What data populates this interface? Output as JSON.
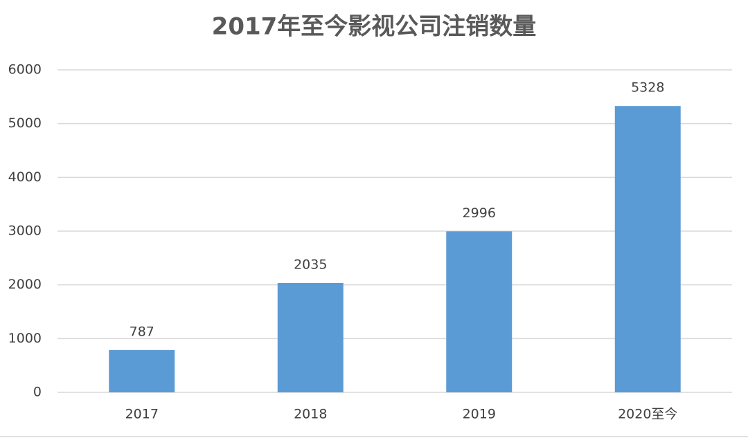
{
  "chart_data": {
    "type": "bar",
    "title": "2017年至今影视公司注销数量",
    "categories": [
      "2017",
      "2018",
      "2019",
      "2020至今"
    ],
    "values": [
      787,
      2035,
      2996,
      5328
    ],
    "color": "#5b9bd5",
    "ylim": [
      0,
      6000
    ],
    "yticks": [
      0,
      1000,
      2000,
      3000,
      4000,
      5000,
      6000
    ],
    "grid": true
  }
}
